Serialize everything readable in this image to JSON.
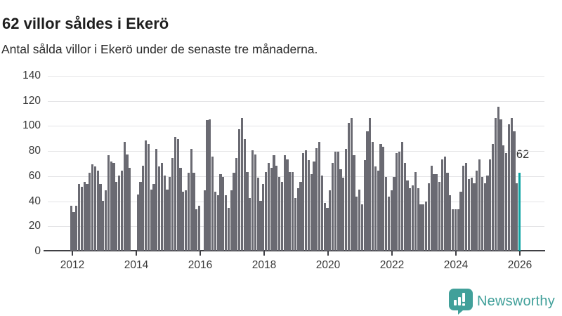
{
  "header": {
    "title": "62 villor såldes i Ekerö",
    "subtitle": "Antal sålda villor i Ekerö under de senaste tre månaderna."
  },
  "chart_data": {
    "type": "bar",
    "title": "62 villor såldes i Ekerö",
    "subtitle": "Antal sålda villor i Ekerö under de senaste tre månaderna.",
    "unit": "sålda villor (rullande tre månader)",
    "frequency": "monthly",
    "start_month": "2012-01",
    "end_month": "2026-01",
    "values": [
      36,
      31,
      36,
      53,
      51,
      55,
      53,
      62,
      69,
      67,
      64,
      53,
      40,
      48,
      76,
      71,
      70,
      55,
      60,
      64,
      87,
      77,
      66,
      0,
      0,
      45,
      55,
      68,
      88,
      85,
      49,
      53,
      81,
      67,
      70,
      60,
      49,
      59,
      74,
      91,
      89,
      66,
      47,
      48,
      62,
      81,
      62,
      33,
      36,
      0,
      48,
      104,
      105,
      75,
      47,
      44,
      61,
      59,
      44,
      34,
      48,
      62,
      74,
      97,
      106,
      89,
      63,
      42,
      80,
      77,
      58,
      40,
      53,
      63,
      70,
      66,
      76,
      68,
      59,
      55,
      76,
      73,
      63,
      63,
      42,
      50,
      55,
      78,
      80,
      72,
      61,
      71,
      82,
      87,
      60,
      38,
      34,
      48,
      70,
      79,
      79,
      65,
      58,
      81,
      102,
      106,
      76,
      43,
      49,
      37,
      72,
      95,
      106,
      87,
      67,
      64,
      85,
      83,
      59,
      43,
      48,
      59,
      78,
      79,
      87,
      70,
      56,
      50,
      52,
      63,
      50,
      37,
      37,
      39,
      54,
      68,
      61,
      61,
      55,
      73,
      75,
      62,
      44,
      33,
      33,
      33,
      47,
      68,
      70,
      57,
      58,
      54,
      64,
      73,
      59,
      54,
      60,
      73,
      85,
      106,
      115,
      105,
      84,
      78,
      101,
      106,
      95,
      54,
      62
    ],
    "highlight": {
      "index": 168,
      "value": 62,
      "color": "#0ba3a2"
    },
    "annotation": "62",
    "bar_color": "#6a6a72",
    "axis_color": "#3f3f44",
    "grid": "horizontal",
    "ylim": [
      0,
      140
    ],
    "yticks": [
      0,
      20,
      40,
      60,
      80,
      100,
      120,
      140
    ],
    "xticks": [
      "2012",
      "2014",
      "2016",
      "2018",
      "2020",
      "2022",
      "2024",
      "2026"
    ]
  },
  "footer": {
    "brand": "Newsworthy",
    "brand_color": "#41a09a"
  }
}
